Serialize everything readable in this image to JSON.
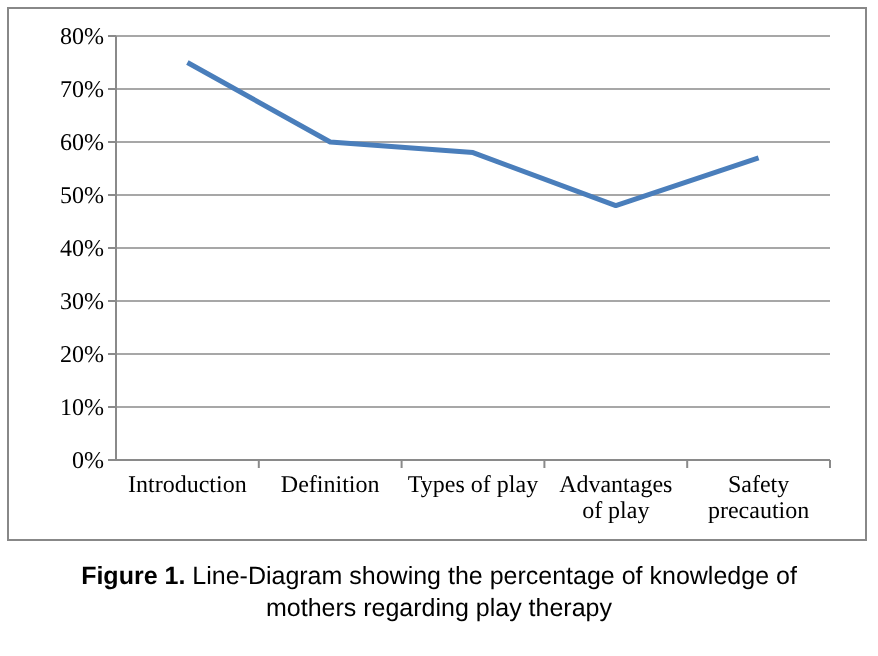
{
  "chart_data": {
    "type": "line",
    "categories": [
      "Introduction",
      "Definition",
      "Types of play",
      "Advantages of play",
      "Safety precaution"
    ],
    "series": [
      {
        "color": "#4a7ebb",
        "values": [
          75,
          60,
          58,
          48,
          57
        ]
      }
    ],
    "ylim": [
      0,
      80
    ],
    "yticks": [
      {
        "value": 0,
        "label": "0%"
      },
      {
        "value": 10,
        "label": "10%"
      },
      {
        "value": 20,
        "label": "20%"
      },
      {
        "value": 30,
        "label": "30%"
      },
      {
        "value": 40,
        "label": "40%"
      },
      {
        "value": 50,
        "label": "50%"
      },
      {
        "value": 60,
        "label": "60%"
      },
      {
        "value": 70,
        "label": "70%"
      },
      {
        "value": 80,
        "label": "80%"
      }
    ],
    "grid": "y",
    "marker": "none",
    "line_style": "solid",
    "annotations": [
      "Figure 1.",
      "Line-Diagram showing the percentage of knowledge of mothers regarding play therapy"
    ]
  }
}
